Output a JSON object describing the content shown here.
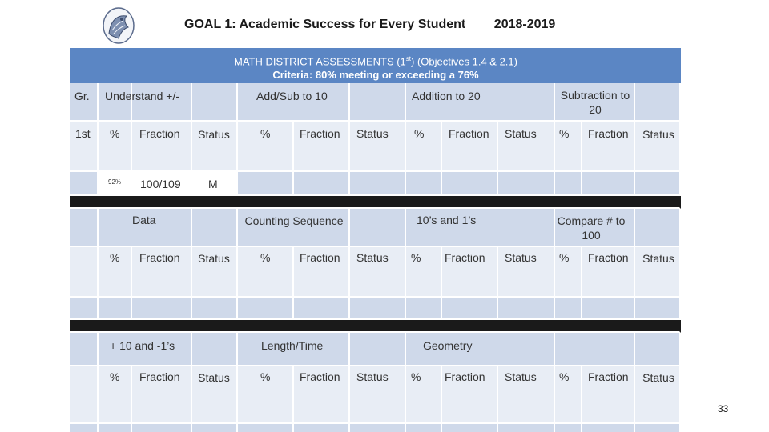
{
  "header": {
    "title": "GOAL 1: Academic Success for Every Student        2018-2019",
    "page_number": "33"
  },
  "banner": {
    "line1_pre": "MATH DISTRICT ASSESSMENTS (1",
    "line1_sup": "st",
    "line1_post": ") (Objectives 1.4 & 2.1)",
    "line2": "Criteria: 80% meeting or exceeding a 76%"
  },
  "row_label": {
    "gr": "Gr.",
    "grade": "1st"
  },
  "sections": {
    "s1": [
      "Understand +/-",
      "Add/Sub to 10",
      "Addition to 20",
      "Subtraction to 20"
    ],
    "s2": [
      "Data",
      "Counting Sequence",
      "10’s and 1’s",
      "Compare # to 100"
    ],
    "s3": [
      "+ 10 and -1’s",
      "Length/Time",
      "Geometry"
    ]
  },
  "sub_headers": {
    "pct": "%",
    "fraction": "Fraction",
    "status": "Status"
  },
  "data_row": {
    "pct": "92%",
    "fraction": "100/109",
    "status": "M"
  }
}
